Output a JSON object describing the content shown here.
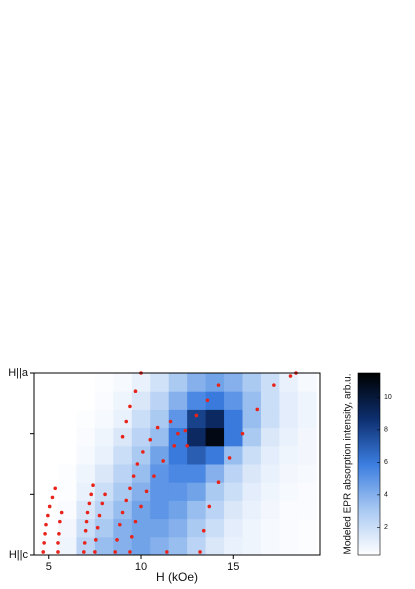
{
  "chart_data": {
    "type": "heatmap",
    "xlabel": "H (kOe)",
    "xlim": [
      4.2,
      19.7
    ],
    "xticks": [
      5,
      10,
      15
    ],
    "ylim": [
      0,
      3
    ],
    "yticks": [
      {
        "value": 0,
        "label": "H||c"
      },
      {
        "value": 1,
        "label": null
      },
      {
        "value": 2,
        "label": null
      },
      {
        "value": 3,
        "label": "H||a"
      }
    ],
    "x": [
      5,
      6,
      7,
      8,
      9,
      10,
      11,
      12,
      13,
      14,
      15,
      16,
      17,
      18,
      19
    ],
    "y": [
      0.15,
      0.45,
      0.75,
      1.05,
      1.35,
      1.65,
      1.95,
      2.25,
      2.55,
      2.85
    ],
    "z": [
      [
        0.5,
        0.8,
        2.5,
        3.5,
        4,
        4.5,
        4,
        3.5,
        2.5,
        1.5,
        1,
        0.8,
        0.6,
        0.5,
        0.4
      ],
      [
        0.4,
        0.7,
        2,
        3,
        4,
        4.5,
        4.5,
        4,
        3,
        2,
        1.2,
        0.8,
        0.6,
        0.5,
        0.4
      ],
      [
        0.3,
        0.5,
        1.5,
        2.5,
        3.5,
        4.5,
        5,
        4.5,
        3.5,
        2.5,
        1.5,
        1,
        0.7,
        0.5,
        0.5
      ],
      [
        0.3,
        0.4,
        1,
        2,
        3,
        4,
        5,
        5,
        4.5,
        3,
        2,
        1.2,
        0.8,
        0.6,
        0.5
      ],
      [
        0.3,
        0.4,
        0.8,
        1.5,
        2.5,
        3.5,
        5,
        5.5,
        5.5,
        4,
        2.5,
        1.5,
        1,
        0.7,
        0.6
      ],
      [
        0.3,
        0.3,
        0.6,
        1,
        2,
        3,
        4.5,
        6,
        7,
        6,
        3.5,
        2,
        1.2,
        0.8,
        0.7
      ],
      [
        0.3,
        0.3,
        0.5,
        0.8,
        1.5,
        2.5,
        3.5,
        6,
        9,
        11,
        6,
        3,
        1.5,
        1,
        0.7
      ],
      [
        0.3,
        0.3,
        0.4,
        0.6,
        1,
        2,
        3,
        5,
        8,
        9,
        6,
        3.5,
        2,
        1.2,
        0.8
      ],
      [
        0.3,
        0.3,
        0.3,
        0.5,
        0.8,
        1.5,
        2.5,
        4,
        5.5,
        6,
        5,
        3.5,
        2,
        1.2,
        0.8
      ],
      [
        0.3,
        0.3,
        0.3,
        0.4,
        0.6,
        1,
        1.8,
        3,
        4,
        4.5,
        4,
        3,
        2,
        1,
        0.6
      ]
    ],
    "colormap": [
      "#ffffff",
      "#a8c8f2",
      "#3b7de0",
      "#0d2e6e",
      "#000000"
    ],
    "zlim": [
      0.3,
      11.5
    ],
    "zticks": [
      2,
      4,
      6,
      8,
      10
    ],
    "zlabel": "Modeled EPR absorption intensity, arb.u.",
    "overlay": {
      "type": "scatter",
      "color": "#e8231a",
      "x": [
        4.7,
        4.75,
        4.8,
        4.85,
        4.95,
        5.05,
        5.2,
        5.35,
        5.5,
        5.5,
        5.55,
        5.6,
        5.7,
        6.9,
        6.95,
        7.0,
        7.05,
        7.1,
        7.2,
        7.3,
        7.4,
        7.5,
        7.55,
        7.65,
        7.75,
        7.9,
        8.05,
        8.6,
        8.7,
        8.85,
        9.0,
        9.2,
        9.4,
        9.6,
        9.8,
        10.1,
        10.5,
        10.9,
        9.4,
        9.5,
        9.7,
        10.0,
        10.3,
        10.7,
        11.2,
        11.8,
        12.4,
        13.0,
        13.6,
        14.2,
        13.2,
        13.4,
        13.7,
        14.2,
        14.8,
        15.5,
        16.3,
        17.2,
        18.1,
        18.4,
        10.0,
        9.7,
        9.4,
        9.2,
        9.0,
        11.4,
        11.6,
        12.0,
        12.5
      ],
      "y": [
        0.05,
        0.2,
        0.35,
        0.5,
        0.65,
        0.8,
        0.95,
        1.1,
        0.05,
        0.2,
        0.35,
        0.55,
        0.7,
        0.05,
        0.2,
        0.4,
        0.55,
        0.7,
        0.85,
        1.0,
        1.15,
        0.05,
        0.25,
        0.45,
        0.65,
        0.85,
        1.0,
        0.05,
        0.25,
        0.5,
        0.7,
        0.9,
        1.1,
        1.3,
        1.5,
        1.7,
        1.9,
        2.1,
        0.05,
        0.3,
        0.55,
        0.8,
        1.05,
        1.3,
        1.55,
        1.8,
        2.05,
        2.3,
        2.55,
        2.8,
        0.05,
        0.4,
        0.8,
        1.2,
        1.6,
        2.0,
        2.4,
        2.8,
        2.95,
        3.0,
        3.0,
        2.7,
        2.45,
        2.2,
        1.95,
        0.05,
        2.2,
        2.0,
        1.8
      ]
    }
  }
}
